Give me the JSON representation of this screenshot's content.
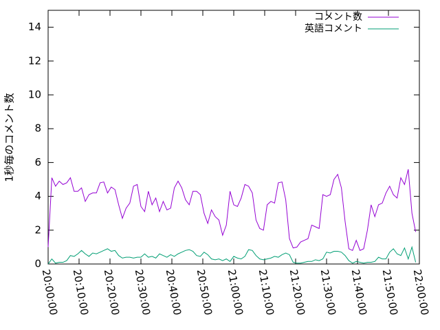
{
  "chart_data": {
    "type": "line",
    "y_label": "1秒毎のコメント数",
    "x": [
      "20:00:00",
      "20:01:12",
      "20:02:24",
      "20:03:36",
      "20:04:48",
      "20:06:00",
      "20:07:12",
      "20:08:24",
      "20:09:36",
      "20:10:48",
      "20:12:00",
      "20:13:12",
      "20:14:24",
      "20:15:36",
      "20:16:48",
      "20:18:00",
      "20:19:12",
      "20:20:24",
      "20:21:36",
      "20:22:48",
      "20:24:00",
      "20:25:12",
      "20:26:24",
      "20:27:36",
      "20:28:48",
      "20:30:00",
      "20:31:12",
      "20:32:24",
      "20:33:36",
      "20:34:48",
      "20:36:00",
      "20:37:12",
      "20:38:24",
      "20:39:36",
      "20:40:48",
      "20:42:00",
      "20:43:12",
      "20:44:24",
      "20:45:36",
      "20:46:48",
      "20:48:00",
      "20:49:12",
      "20:50:24",
      "20:51:36",
      "20:52:48",
      "20:54:00",
      "20:55:12",
      "20:56:24",
      "20:57:36",
      "20:58:48",
      "21:00:00",
      "21:01:12",
      "21:02:24",
      "21:03:36",
      "21:04:48",
      "21:06:00",
      "21:07:12",
      "21:08:24",
      "21:09:36",
      "21:10:48",
      "21:12:00",
      "21:13:12",
      "21:14:24",
      "21:15:36",
      "21:16:48",
      "21:18:00",
      "21:19:12",
      "21:20:24",
      "21:21:36",
      "21:22:48",
      "21:24:00",
      "21:25:12",
      "21:26:24",
      "21:27:36",
      "21:28:48",
      "21:30:00",
      "21:31:12",
      "21:32:24",
      "21:33:36",
      "21:34:48",
      "21:36:00",
      "21:37:12",
      "21:38:24",
      "21:39:36",
      "21:40:48",
      "21:42:00",
      "21:43:12",
      "21:44:24",
      "21:45:36",
      "21:46:48",
      "21:48:00",
      "21:49:12",
      "21:50:24",
      "21:51:36",
      "21:52:48",
      "21:54:00",
      "21:55:12",
      "21:56:24",
      "21:57:36",
      "21:58:48"
    ],
    "series": [
      {
        "name": "コメント数",
        "color": "#9400d3",
        "values": [
          1.0,
          5.1,
          4.6,
          4.9,
          4.7,
          4.8,
          5.1,
          4.3,
          4.3,
          4.5,
          3.7,
          4.1,
          4.2,
          4.2,
          4.8,
          4.85,
          4.2,
          4.55,
          4.4,
          3.5,
          2.7,
          3.3,
          3.6,
          4.6,
          4.7,
          3.4,
          3.1,
          4.3,
          3.5,
          3.9,
          3.1,
          3.7,
          3.2,
          3.3,
          4.5,
          4.9,
          4.5,
          3.8,
          3.5,
          4.3,
          4.3,
          4.1,
          3.0,
          2.4,
          3.2,
          2.8,
          2.6,
          1.7,
          2.3,
          4.3,
          3.5,
          3.4,
          3.9,
          4.7,
          4.6,
          4.2,
          2.6,
          2.1,
          2.0,
          3.5,
          3.7,
          3.6,
          4.8,
          4.85,
          3.8,
          1.5,
          0.95,
          1.0,
          1.3,
          1.4,
          1.5,
          2.3,
          2.2,
          2.1,
          4.1,
          4.0,
          4.1,
          5.0,
          5.3,
          4.5,
          2.5,
          0.9,
          0.8,
          1.4,
          0.8,
          0.9,
          2.0,
          3.5,
          2.8,
          3.5,
          3.6,
          4.2,
          4.6,
          4.1,
          3.9,
          5.1,
          4.7,
          5.6,
          3.0,
          1.9
        ]
      },
      {
        "name": "英語コメント",
        "color": "#009e73",
        "values": [
          0.0,
          0.3,
          0.05,
          0.1,
          0.1,
          0.2,
          0.5,
          0.45,
          0.6,
          0.8,
          0.6,
          0.45,
          0.65,
          0.6,
          0.7,
          0.8,
          0.9,
          0.75,
          0.8,
          0.5,
          0.35,
          0.4,
          0.4,
          0.35,
          0.4,
          0.4,
          0.6,
          0.4,
          0.45,
          0.35,
          0.6,
          0.5,
          0.4,
          0.55,
          0.45,
          0.6,
          0.7,
          0.8,
          0.85,
          0.75,
          0.5,
          0.45,
          0.7,
          0.55,
          0.3,
          0.25,
          0.3,
          0.2,
          0.3,
          0.15,
          0.45,
          0.35,
          0.3,
          0.45,
          0.85,
          0.8,
          0.5,
          0.3,
          0.25,
          0.3,
          0.35,
          0.45,
          0.4,
          0.55,
          0.65,
          0.55,
          0.1,
          0.05,
          0.05,
          0.1,
          0.15,
          0.15,
          0.25,
          0.2,
          0.3,
          0.7,
          0.65,
          0.75,
          0.75,
          0.7,
          0.5,
          0.2,
          0.05,
          0.15,
          0.1,
          0.05,
          0.1,
          0.1,
          0.15,
          0.4,
          0.3,
          0.3,
          0.7,
          0.9,
          0.6,
          0.5,
          0.95,
          0.3,
          1.0,
          0.1
        ]
      }
    ],
    "xlim": [
      "20:00:00",
      "22:00:00"
    ],
    "xticks": [
      "20:00:00",
      "20:10:00",
      "20:20:00",
      "20:30:00",
      "20:40:00",
      "20:50:00",
      "21:00:00",
      "21:10:00",
      "21:20:00",
      "21:30:00",
      "21:40:00",
      "21:50:00",
      "22:00:00"
    ],
    "ylim": [
      0,
      15
    ],
    "yticks": [
      0,
      2,
      4,
      6,
      8,
      10,
      12,
      14
    ],
    "legend": "top-right",
    "grid": false
  }
}
